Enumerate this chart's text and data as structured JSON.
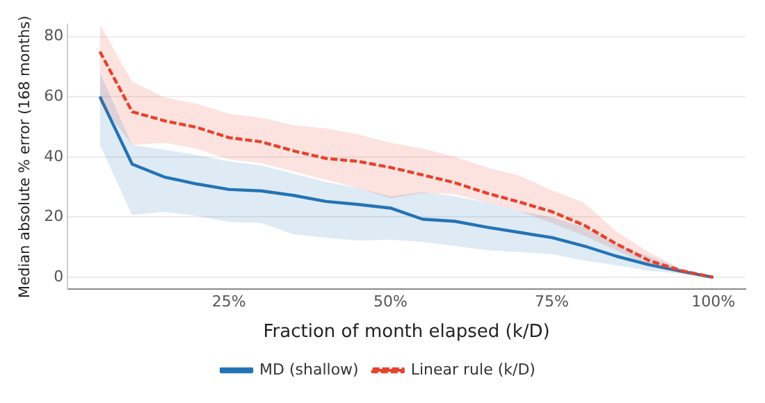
{
  "chart_data": {
    "type": "line",
    "xlabel": "Fraction of month elapsed (k/D)",
    "ylabel": "Median absolute % error (168 months)",
    "x": [
      0.05,
      0.1,
      0.15,
      0.2,
      0.25,
      0.3,
      0.35,
      0.4,
      0.45,
      0.5,
      0.55,
      0.6,
      0.65,
      0.7,
      0.75,
      0.8,
      0.85,
      0.9,
      0.95,
      1.0
    ],
    "xlim": [
      0,
      1.05
    ],
    "xticks": [
      {
        "value": 0.25,
        "label": "25%"
      },
      {
        "value": 0.5,
        "label": "50%"
      },
      {
        "value": 0.75,
        "label": "75%"
      },
      {
        "value": 1.0,
        "label": "100%"
      }
    ],
    "ylim": [
      -4,
      84
    ],
    "yticks": [
      0,
      20,
      40,
      60,
      80
    ],
    "grid": "y",
    "legend": "bottom",
    "marker": "none",
    "series": [
      {
        "name": "MD (shallow)",
        "color": "#2474b5",
        "line_style": "solid",
        "values": [
          60,
          37.6,
          33.3,
          31,
          29.2,
          28.7,
          27.2,
          25.2,
          24.2,
          23,
          19.3,
          18.6,
          16.6,
          14.9,
          13.2,
          10.4,
          7,
          4.2,
          2,
          0
        ],
        "lower": [
          44,
          20.7,
          21.8,
          20.4,
          18.4,
          18,
          14.3,
          13.2,
          12.2,
          12.5,
          11.8,
          10.4,
          9,
          8.4,
          7.7,
          5.6,
          4,
          2.2,
          1.2,
          0
        ],
        "upper": [
          68,
          44,
          42.4,
          40.6,
          38.5,
          37.2,
          34.4,
          31.7,
          29.6,
          26.9,
          28.3,
          26.9,
          24.8,
          22,
          20,
          16.6,
          11.1,
          7,
          2.9,
          0
        ]
      },
      {
        "name": "Linear rule (k/D)",
        "color": "#e8412c",
        "line_style": "dashed",
        "values": [
          75,
          55,
          52,
          49.8,
          46.4,
          45,
          42,
          39.5,
          38.5,
          36.5,
          34,
          31.4,
          27.9,
          25,
          21.8,
          17.3,
          11.1,
          5.6,
          2.2,
          0
        ],
        "lower": [
          58,
          44,
          44.7,
          42.7,
          39.2,
          37.9,
          35.1,
          32.4,
          29.6,
          26.2,
          28,
          27.6,
          24.8,
          22,
          18,
          13.8,
          9,
          4.2,
          1.5,
          0
        ],
        "upper": [
          84,
          65,
          59.8,
          57.7,
          54.3,
          53,
          50.5,
          49.5,
          47.5,
          44.7,
          42.7,
          40,
          36.5,
          33.7,
          28.9,
          24.8,
          15.2,
          8.4,
          2.9,
          0
        ]
      }
    ]
  }
}
